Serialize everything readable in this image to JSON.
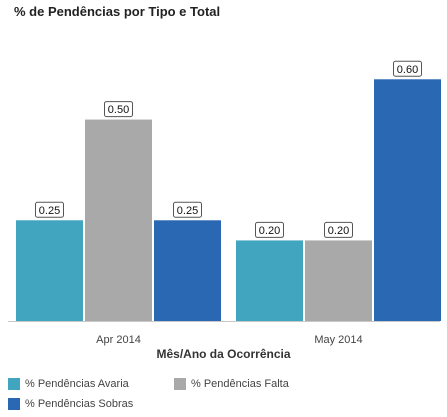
{
  "chart_data": {
    "type": "bar",
    "title": "% de Pendências por Tipo e Total",
    "xlabel": "Mês/Ano da Ocorrência",
    "ylabel": "",
    "ylim": [
      0,
      0.7
    ],
    "categories": [
      "Apr 2014",
      "May 2014"
    ],
    "series": [
      {
        "name": "% Pendências Avaria",
        "color": "#42a5c0",
        "values": [
          0.25,
          0.2
        ],
        "labels": [
          "0.25",
          "0.20"
        ]
      },
      {
        "name": "% Pendências Falta",
        "color": "#a9a9a9",
        "values": [
          0.5,
          0.2
        ],
        "labels": [
          "0.50",
          "0.20"
        ]
      },
      {
        "name": "% Pendências Sobras",
        "color": "#2b68b3",
        "values": [
          0.25,
          0.6
        ],
        "labels": [
          "0.25",
          "0.60"
        ]
      }
    ],
    "legend_position": "bottom",
    "grid": false
  }
}
